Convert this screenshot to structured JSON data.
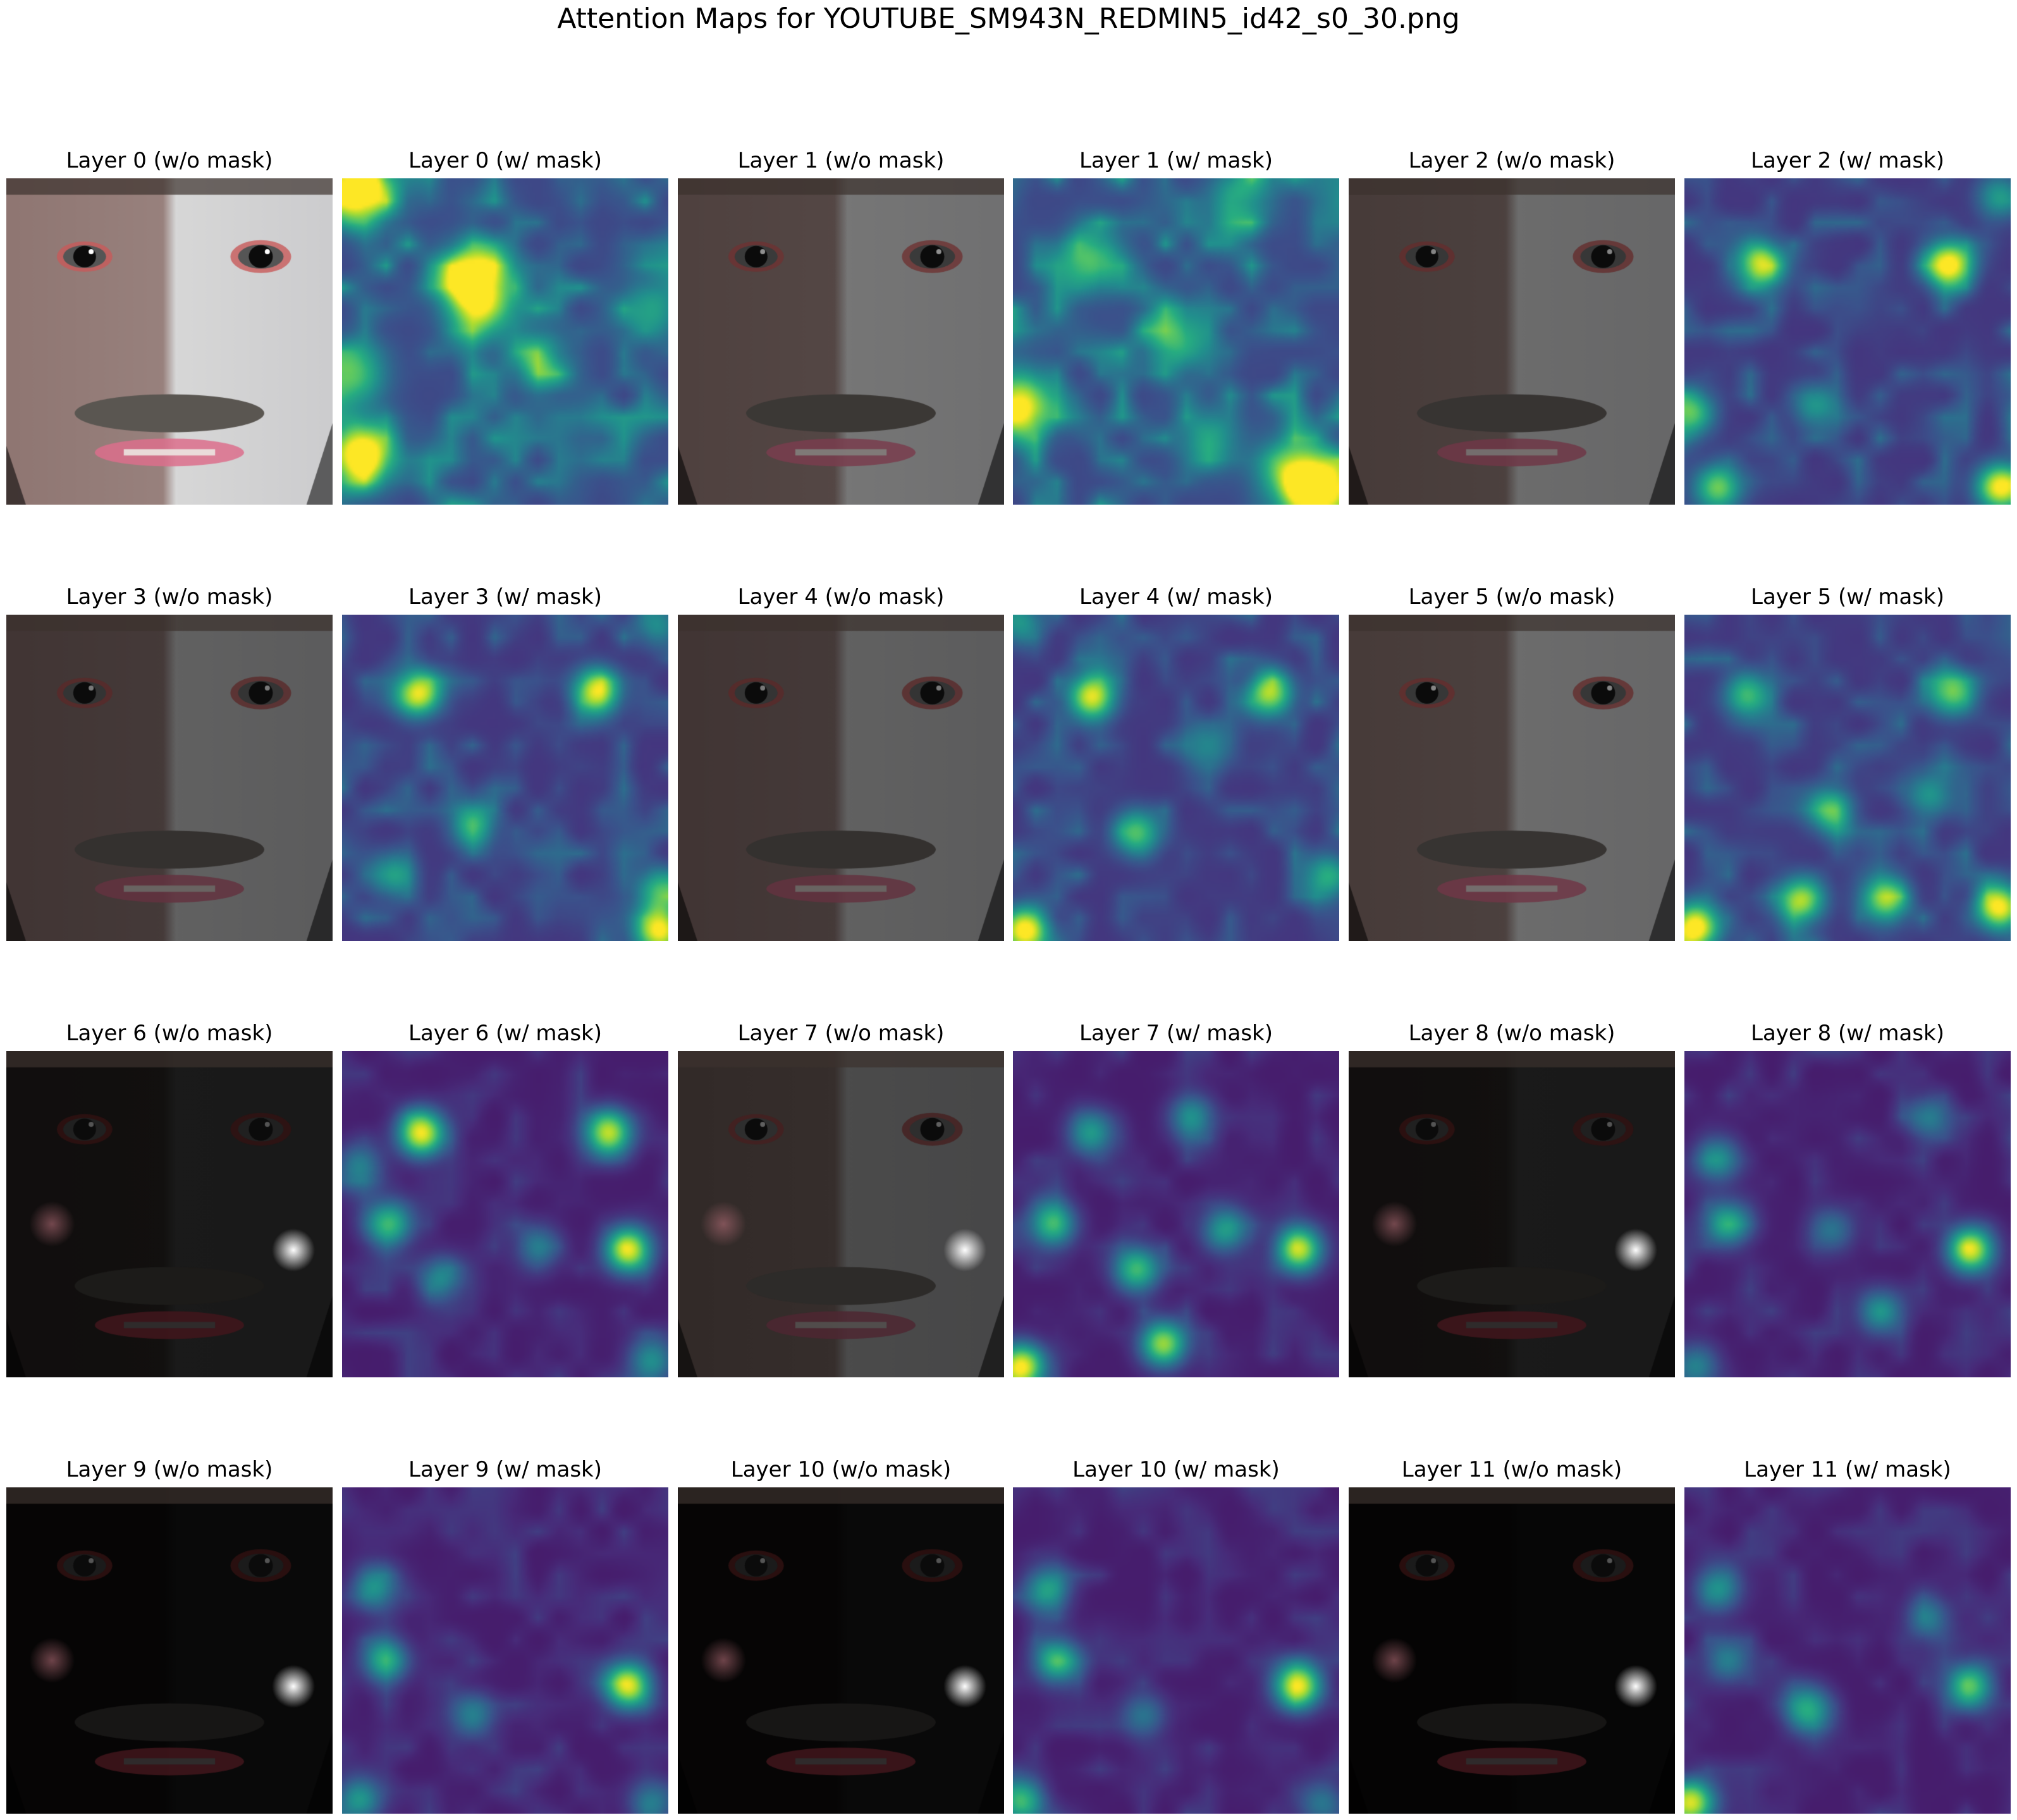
{
  "title": "Attention Maps for YOUTUBE_SM943N_REDMIN5_id42_s0_30.png",
  "layout": {
    "rows": 4,
    "cols": 6
  },
  "panels": [
    {
      "title": "Layer 0 (w/o mask)",
      "kind": "face",
      "layer": 0
    },
    {
      "title": "Layer 0 (w/ mask)",
      "kind": "heatmap",
      "layer": 0
    },
    {
      "title": "Layer 1 (w/o mask)",
      "kind": "face",
      "layer": 1
    },
    {
      "title": "Layer 1 (w/ mask)",
      "kind": "heatmap",
      "layer": 1
    },
    {
      "title": "Layer 2 (w/o mask)",
      "kind": "face",
      "layer": 2
    },
    {
      "title": "Layer 2 (w/ mask)",
      "kind": "heatmap",
      "layer": 2
    },
    {
      "title": "Layer 3 (w/o mask)",
      "kind": "face",
      "layer": 3
    },
    {
      "title": "Layer 3 (w/ mask)",
      "kind": "heatmap",
      "layer": 3
    },
    {
      "title": "Layer 4 (w/o mask)",
      "kind": "face",
      "layer": 4
    },
    {
      "title": "Layer 4 (w/ mask)",
      "kind": "heatmap",
      "layer": 4
    },
    {
      "title": "Layer 5 (w/o mask)",
      "kind": "face",
      "layer": 5
    },
    {
      "title": "Layer 5 (w/ mask)",
      "kind": "heatmap",
      "layer": 5
    },
    {
      "title": "Layer 6 (w/o mask)",
      "kind": "face",
      "layer": 6
    },
    {
      "title": "Layer 6 (w/ mask)",
      "kind": "heatmap",
      "layer": 6
    },
    {
      "title": "Layer 7 (w/o mask)",
      "kind": "face",
      "layer": 7
    },
    {
      "title": "Layer 7 (w/ mask)",
      "kind": "heatmap",
      "layer": 7
    },
    {
      "title": "Layer 8 (w/o mask)",
      "kind": "face",
      "layer": 8
    },
    {
      "title": "Layer 8 (w/ mask)",
      "kind": "heatmap",
      "layer": 8
    },
    {
      "title": "Layer 9 (w/o mask)",
      "kind": "face",
      "layer": 9
    },
    {
      "title": "Layer 9 (w/ mask)",
      "kind": "heatmap",
      "layer": 9
    },
    {
      "title": "Layer 10 (w/o mask)",
      "kind": "face",
      "layer": 10
    },
    {
      "title": "Layer 10 (w/ mask)",
      "kind": "heatmap",
      "layer": 10
    },
    {
      "title": "Layer 11 (w/o mask)",
      "kind": "face",
      "layer": 11
    },
    {
      "title": "Layer 11 (w/ mask)",
      "kind": "heatmap",
      "layer": 11
    }
  ],
  "colormap": "viridis"
}
